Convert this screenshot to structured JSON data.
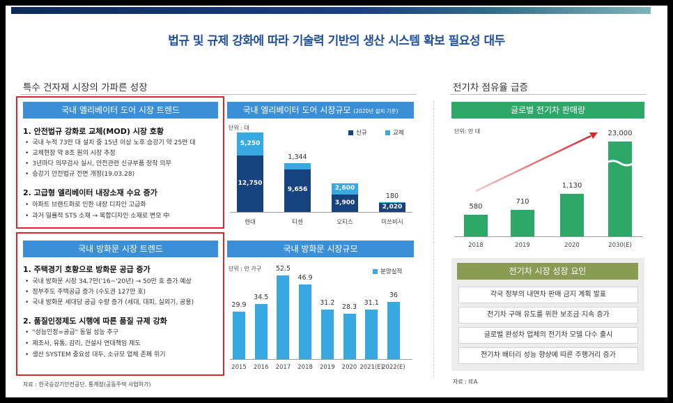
{
  "main_title": "법규 및 규제 강화에 따라 기술력 기반의 생산 시스템 확보 필요성 대두",
  "left_section_title": "특수 건자재 시장의 가파른 성장",
  "right_section_title": "전기차 점유율 급증",
  "elevator_trend": {
    "header": "국내 엘리베이터 도어 시장 트렌드",
    "h1": "1. 안전법규 강화로 교체(MOD) 시장 호황",
    "b1": [
      "국내 누적 73만 대 설치 중 15년 이상 노후 승강기 약 25만 대",
      "교체현장 약 8조 원의 시장 추정",
      "3년마다 의무검사 실시, 안전관련 신규부품 장착 의무",
      "승강기 안전법규 전면 개정(19.03.28)"
    ],
    "h2": "2. 고급형 엘리베이터 내장소재 수요 증가",
    "b2": [
      "아파트 브랜드화로 인한 내장 디자인 고급화",
      "과거 일률적 STS 소재 → 복합디자인 소재로 변모 中"
    ]
  },
  "fire_door_trend": {
    "header": "국내 방화문 시장 트렌드",
    "h1": "1. 주택경기 호황으로 방화문 공급 증가",
    "b1": [
      "국내 방화문 시장 34.7만('16~'20년) → 50만 호 증가 예상",
      "정부주도 주택공급 증가 (수도권 127만 호)",
      "국내 방화문 세대당 공급 수량 증가 (세대, 대피, 실외기, 공용)"
    ],
    "h2": "2. 품질인정제도 시행에 따른 품질 규제 강화",
    "b2": [
      "\"성능인정=공급\" 동일 성능 추구",
      "제조사, 유통, 감리, 건설사 연대책임 제도",
      "생산 SYSTEM 중요성 대두, 소규모 업체 존폐 위기"
    ]
  },
  "left_source": "자료 : 한국승강기안전공단, 통계청(공동주택 사업허가)",
  "right_source": "자료 : IEA",
  "elevator_chart_header": "국내 엘리베이터 도어 시장규모",
  "elevator_chart_header_note": "(2020년 설치 기준)",
  "fire_chart_header": "국내 방화문 시장규모",
  "ev_chart_header": "글로벌 전기차 판매량",
  "factors_title": "전기차 시장 성장 요인",
  "factors": [
    "각국 정부의 내연차 판매 금지 계획 발표",
    "전기차 구매 유도를 위한 보조금 지속 증가",
    "글로벌 완성차 업체의 전기차 모델 다수 출시",
    "전기차 배터리 성능 향상에 따른 주행거리 증가"
  ],
  "colors": {
    "title_blue": "#1f4e9c",
    "navy": "#16437e",
    "light_blue": "#38a8e0",
    "green": "#2ea868",
    "red": "#d9262c",
    "olive": "#8a9b54"
  },
  "chart_data": [
    {
      "type": "bar",
      "title": "국내 엘리베이터 도어 시장규모",
      "unit": "단위 : 대",
      "stacked": true,
      "categories": [
        "현대",
        "티센",
        "오티스",
        "미쓰비시"
      ],
      "series": [
        {
          "name": "신규",
          "values": [
            12750,
            9656,
            3900,
            2020
          ],
          "labels": [
            "12,750",
            "9,656",
            "3,900",
            "2,020"
          ]
        },
        {
          "name": "교체",
          "values": [
            5250,
            1344,
            2600,
            180
          ],
          "labels": [
            "5,250",
            "1,344",
            "2,600",
            "180"
          ]
        }
      ],
      "legend": "top-right"
    },
    {
      "type": "bar",
      "title": "국내 방화문 시장규모",
      "unit": "단위 : 만 가구",
      "categories": [
        "2015",
        "2016",
        "2017",
        "2018",
        "2019",
        "2020",
        "2021(E)",
        "2022(E)"
      ],
      "series": [
        {
          "name": "분양실적",
          "values": [
            29.9,
            34.5,
            52.5,
            46.9,
            31.2,
            28.3,
            31.1,
            36
          ],
          "labels": [
            "29.9",
            "34.5",
            "52.5",
            "46.9",
            "31.2",
            "28.3",
            "31.1",
            "36"
          ]
        }
      ],
      "legend": "top-right"
    },
    {
      "type": "bar",
      "title": "글로벌 전기차 판매량",
      "unit": "단위: 만 대",
      "categories": [
        "2018",
        "2019",
        "2020",
        "2030(E)"
      ],
      "series": [
        {
          "values": [
            580,
            710,
            1130,
            23000
          ],
          "labels": [
            "580",
            "710",
            "1,130",
            "23,000"
          ]
        }
      ],
      "axis_break": true
    }
  ]
}
